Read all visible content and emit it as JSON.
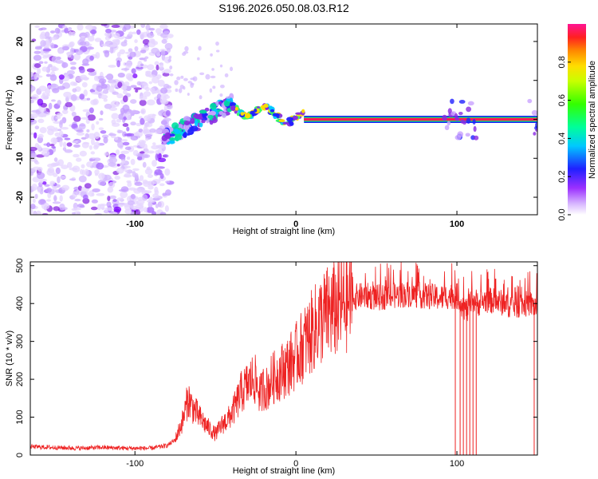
{
  "title": "S196.2026.050.08.03.R12",
  "chart_data": [
    {
      "type": "heatmap",
      "title": "S196.2026.050.08.03.R12",
      "xlabel": "Height of straight line (km)",
      "ylabel": "Frequency (Hz)",
      "xlim": [
        -165,
        150
      ],
      "ylim": [
        -24.5,
        24.5
      ],
      "xticks": [
        -100,
        0,
        100
      ],
      "yticks": [
        -20,
        -10,
        0,
        10,
        20
      ],
      "colorbar": {
        "label": "Normalized spectral amplitude",
        "range": [
          0,
          1
        ],
        "ticks": [
          0.0,
          0.2,
          0.4,
          0.6,
          0.8
        ],
        "colors": [
          "#ffffff",
          "#c080ff",
          "#7a00ff",
          "#1a1aff",
          "#00d5ff",
          "#00ff66",
          "#66ff00",
          "#ffee00",
          "#ff8800",
          "#ff0033",
          "#ff1493"
        ]
      },
      "description_regions": [
        {
          "x_range": [
            -165,
            -82
          ],
          "freq_range": [
            -24.5,
            24.5
          ],
          "amplitude": 0.15,
          "pattern": "broadband noise"
        },
        {
          "x_range": [
            -82,
            -40
          ],
          "freq_center_start": -5,
          "freq_center_end": 4,
          "amplitude": 0.4,
          "pattern": "rising signal"
        },
        {
          "x_range": [
            -40,
            5
          ],
          "freq_center_start": 3,
          "freq_center_end": 0,
          "amplitude": 0.5,
          "pattern": "oscillating signal"
        },
        {
          "x_range": [
            5,
            150
          ],
          "freq_center": 0,
          "amplitude": 0.98,
          "pattern": "steady tone"
        }
      ]
    },
    {
      "type": "line",
      "xlabel": "Height of straight line (km)",
      "ylabel": "SNR (10 * v/v)",
      "xlim": [
        -165,
        150
      ],
      "ylim": [
        0,
        510
      ],
      "xticks": [
        -100,
        0,
        100
      ],
      "yticks": [
        0,
        100,
        200,
        300,
        400,
        500
      ],
      "series": [
        {
          "name": "SNR",
          "color": "#ee2222",
          "x": [
            -165,
            -150,
            -135,
            -120,
            -105,
            -90,
            -80,
            -75,
            -70,
            -67,
            -64,
            -60,
            -55,
            -50,
            -45,
            -42,
            -38,
            -34,
            -30,
            -26,
            -22,
            -20,
            -18,
            -15,
            -12,
            -8,
            -5,
            -2,
            0,
            3,
            6,
            10,
            15,
            20,
            25,
            30,
            35,
            40,
            45,
            50,
            60,
            70,
            80,
            90,
            95,
            100,
            103,
            106,
            110,
            114,
            118,
            125,
            135,
            145,
            150
          ],
          "y": [
            22,
            20,
            18,
            20,
            18,
            18,
            25,
            40,
            95,
            150,
            125,
            100,
            75,
            55,
            85,
            95,
            125,
            165,
            185,
            205,
            160,
            180,
            175,
            200,
            210,
            225,
            235,
            250,
            260,
            280,
            300,
            325,
            355,
            375,
            385,
            400,
            415,
            420,
            420,
            415,
            420,
            425,
            420,
            415,
            420,
            420,
            400,
            380,
            410,
            400,
            410,
            405,
            395,
            400,
            390
          ],
          "dropouts_x": [
            99,
            102,
            104,
            106,
            108,
            110,
            112,
            148
          ]
        }
      ]
    }
  ]
}
